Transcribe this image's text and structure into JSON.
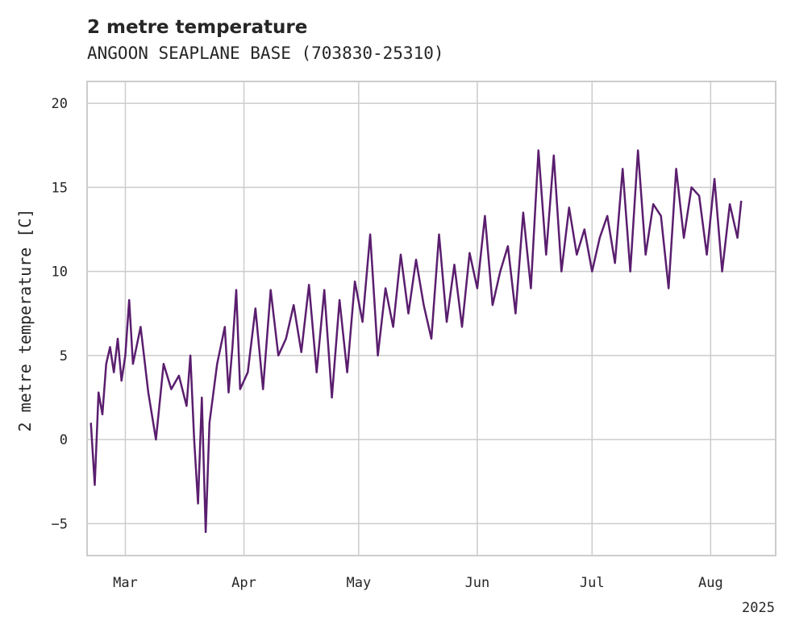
{
  "chart_data": {
    "type": "line",
    "title": "2 metre temperature",
    "subtitle": "ANGOON SEAPLANE BASE (703830-25310)",
    "ylabel": "2 metre temperature [C]",
    "xlabel": "",
    "xlim": [
      "2025-02-19",
      "2025-08-18"
    ],
    "ylim": [
      -6.9,
      21.3
    ],
    "yticks": [
      -5,
      0,
      5,
      10,
      15,
      20
    ],
    "ytick_labels": [
      "−5",
      "0",
      "5",
      "10",
      "15",
      "20"
    ],
    "xticks": [
      "2025-03-01",
      "2025-04-01",
      "2025-05-01",
      "2025-06-01",
      "2025-07-01",
      "2025-08-01"
    ],
    "xtick_labels": [
      "Mar",
      "Apr",
      "May",
      "Jun",
      "Jul",
      "Aug"
    ],
    "x_offset_label": "2025",
    "grid": true,
    "line_color": "#5a1e6e",
    "series": [
      {
        "name": "",
        "x": [
          "2025-02-20",
          "2025-02-21",
          "2025-02-22",
          "2025-02-23",
          "2025-02-24",
          "2025-02-25",
          "2025-02-26",
          "2025-02-27",
          "2025-02-28",
          "2025-03-01",
          "2025-03-02",
          "2025-03-03",
          "2025-03-05",
          "2025-03-07",
          "2025-03-09",
          "2025-03-11",
          "2025-03-13",
          "2025-03-15",
          "2025-03-17",
          "2025-03-18",
          "2025-03-19",
          "2025-03-20",
          "2025-03-21",
          "2025-03-22",
          "2025-03-23",
          "2025-03-25",
          "2025-03-27",
          "2025-03-28",
          "2025-03-29",
          "2025-03-30",
          "2025-03-31",
          "2025-04-02",
          "2025-04-04",
          "2025-04-06",
          "2025-04-08",
          "2025-04-10",
          "2025-04-12",
          "2025-04-14",
          "2025-04-16",
          "2025-04-18",
          "2025-04-20",
          "2025-04-22",
          "2025-04-24",
          "2025-04-26",
          "2025-04-28",
          "2025-04-30",
          "2025-05-02",
          "2025-05-04",
          "2025-05-06",
          "2025-05-08",
          "2025-05-10",
          "2025-05-12",
          "2025-05-14",
          "2025-05-16",
          "2025-05-18",
          "2025-05-20",
          "2025-05-22",
          "2025-05-24",
          "2025-05-26",
          "2025-05-28",
          "2025-05-30",
          "2025-06-01",
          "2025-06-03",
          "2025-06-05",
          "2025-06-07",
          "2025-06-09",
          "2025-06-11",
          "2025-06-13",
          "2025-06-15",
          "2025-06-17",
          "2025-06-19",
          "2025-06-21",
          "2025-06-23",
          "2025-06-25",
          "2025-06-27",
          "2025-06-29",
          "2025-07-01",
          "2025-07-03",
          "2025-07-05",
          "2025-07-07",
          "2025-07-09",
          "2025-07-11",
          "2025-07-13",
          "2025-07-15",
          "2025-07-17",
          "2025-07-19",
          "2025-07-21",
          "2025-07-23",
          "2025-07-25",
          "2025-07-27",
          "2025-07-29",
          "2025-07-31",
          "2025-08-02",
          "2025-08-04",
          "2025-08-06",
          "2025-08-08",
          "2025-08-09"
        ],
        "y": [
          1.0,
          -2.7,
          2.8,
          1.5,
          4.5,
          5.5,
          4.0,
          6.0,
          3.5,
          5.0,
          8.3,
          4.5,
          6.7,
          2.8,
          0.0,
          4.5,
          3.0,
          3.8,
          2.0,
          5.0,
          0.0,
          -3.8,
          2.5,
          -5.5,
          1.0,
          4.5,
          6.7,
          2.8,
          5.5,
          8.9,
          3.0,
          4.0,
          7.8,
          3.0,
          8.9,
          5.0,
          6.0,
          8.0,
          5.2,
          9.2,
          4.0,
          8.9,
          2.5,
          8.3,
          4.0,
          9.4,
          7.0,
          12.2,
          5.0,
          9.0,
          6.7,
          11.0,
          7.5,
          10.7,
          8.0,
          6.0,
          12.2,
          7.0,
          10.4,
          6.7,
          11.1,
          9.0,
          13.3,
          8.0,
          10.0,
          11.5,
          7.5,
          13.5,
          9.0,
          17.2,
          11.0,
          16.9,
          10.0,
          13.8,
          11.0,
          12.5,
          10.0,
          12.0,
          13.3,
          10.5,
          16.1,
          10.0,
          17.2,
          11.0,
          14.0,
          13.3,
          9.0,
          16.1,
          12.0,
          15.0,
          14.5,
          11.0,
          15.5,
          10.0,
          14.0,
          12.0,
          14.2
        ]
      }
    ]
  }
}
